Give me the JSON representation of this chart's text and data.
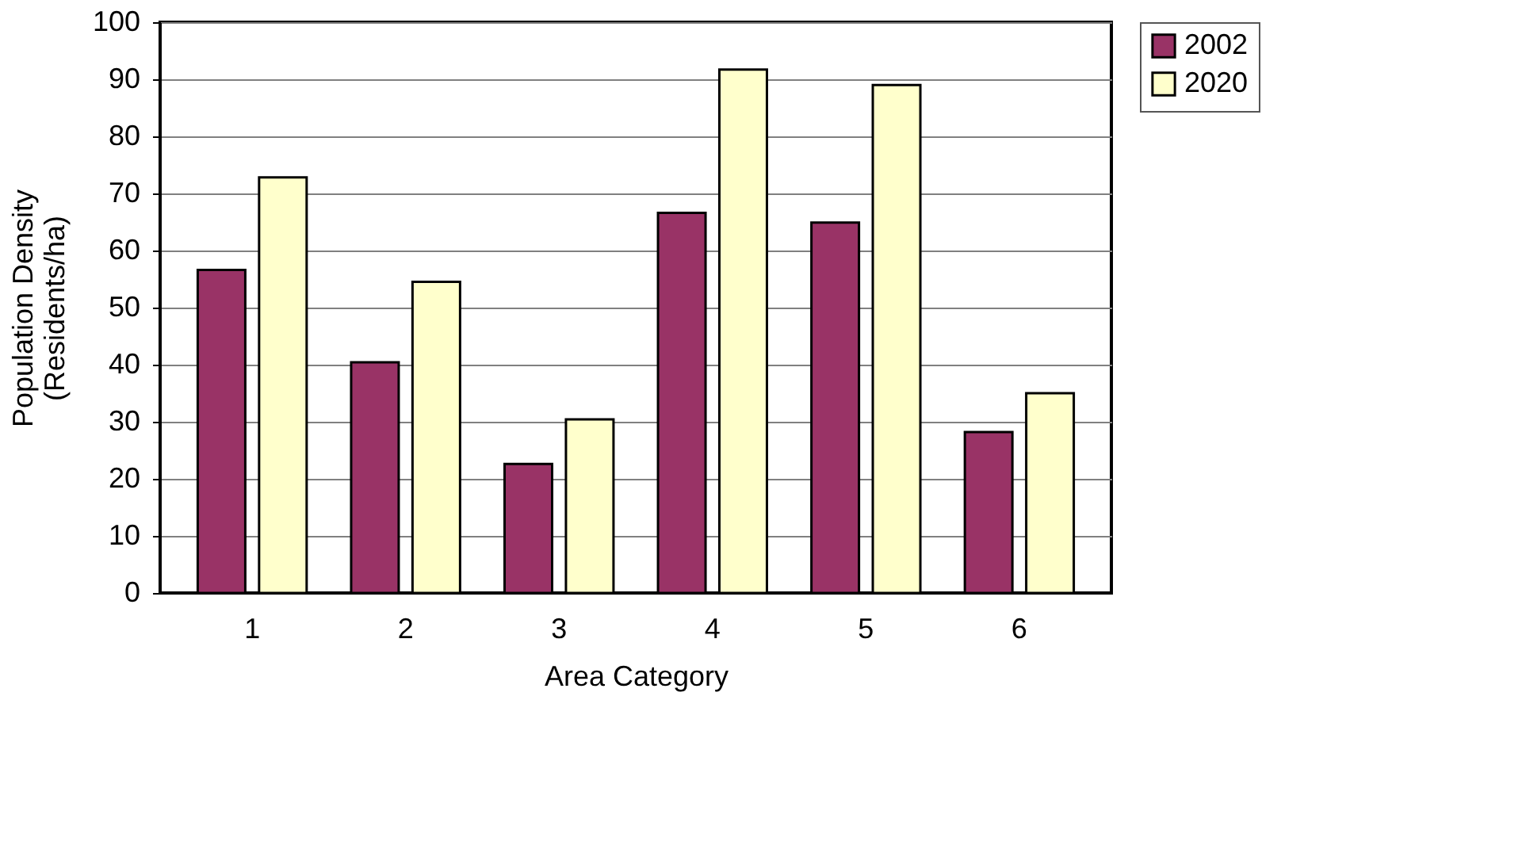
{
  "chart_data": {
    "type": "bar",
    "xlabel": "Area Category",
    "ylabel": "Population Density\n(Residents/ha)",
    "categories": [
      "1",
      "2",
      "3",
      "4",
      "5",
      "6"
    ],
    "series": [
      {
        "name": "2002",
        "color": "#993366",
        "values": [
          56.6,
          40.4,
          22.6,
          66.6,
          64.9,
          28.2
        ]
      },
      {
        "name": "2020",
        "color": "#ffffcc",
        "values": [
          72.8,
          54.5,
          30.4,
          91.7,
          89.0,
          35.0
        ]
      }
    ],
    "ylim": [
      0,
      100
    ],
    "yticks": [
      0,
      10,
      20,
      30,
      40,
      50,
      60,
      70,
      80,
      90,
      100
    ],
    "grid": "y",
    "legend": "right"
  }
}
